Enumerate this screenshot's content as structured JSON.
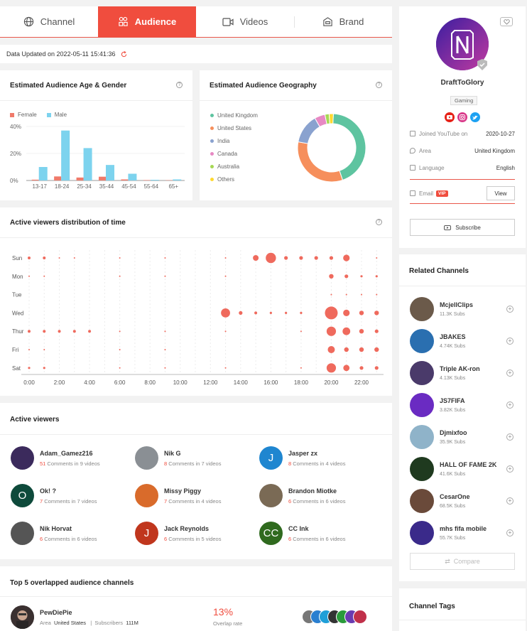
{
  "tabs": [
    {
      "label": "Channel",
      "icon": "globe-icon",
      "active": false
    },
    {
      "label": "Audience",
      "icon": "audience-icon",
      "active": true
    },
    {
      "label": "Videos",
      "icon": "video-icon",
      "active": false
    },
    {
      "label": "Brand",
      "icon": "brand-icon",
      "active": false
    }
  ],
  "updated": {
    "label": "Data Updated on 2022-05-11 15:41:36"
  },
  "age_gender": {
    "title": "Estimated Audience Age & Gender",
    "legend": [
      "Female",
      "Male"
    ],
    "colors": {
      "female": "#f07a6a",
      "male": "#7dd3ee"
    },
    "chart_data": {
      "type": "bar",
      "categories": [
        "13-17",
        "18-24",
        "25-34",
        "35-44",
        "45-54",
        "55-64",
        "65+"
      ],
      "series": [
        {
          "name": "Female",
          "values": [
            0.6,
            3,
            2.2,
            2.8,
            0.8,
            0.3,
            0.2
          ]
        },
        {
          "name": "Male",
          "values": [
            10,
            37,
            24,
            11.5,
            5,
            0.5,
            0.8
          ]
        }
      ],
      "yticks": [
        "40%",
        "20%",
        "0%"
      ],
      "ylim": [
        0,
        40
      ]
    }
  },
  "geography": {
    "title": "Estimated Audience Geography",
    "chart_data": {
      "type": "pie",
      "labels": [
        "United Kingdom",
        "United States",
        "India",
        "Canada",
        "Australia",
        "Others"
      ],
      "values": [
        44,
        33,
        14,
        5,
        2,
        2
      ],
      "colors": [
        "#5ec4a0",
        "#f68f5c",
        "#8aa2cf",
        "#e789c3",
        "#a6d854",
        "#ffd92f"
      ]
    }
  },
  "active_time": {
    "title": "Active viewers distribution of time",
    "chart_data": {
      "type": "scatter",
      "days": [
        "Sun",
        "Mon",
        "Tue",
        "Wed",
        "Thur",
        "Fri",
        "Sat"
      ],
      "x_ticks": [
        "0:00",
        "2:00",
        "4:00",
        "6:00",
        "8:00",
        "10:00",
        "12:00",
        "14:00",
        "16:00",
        "18:00",
        "20:00",
        "22:00"
      ],
      "points": [
        [
          0,
          0,
          1
        ],
        [
          0,
          1,
          1
        ],
        [
          0,
          2,
          0.5
        ],
        [
          0,
          3,
          0.5
        ],
        [
          0,
          6,
          0.5
        ],
        [
          0,
          9,
          0.5
        ],
        [
          0,
          13,
          0.5
        ],
        [
          0,
          15,
          2
        ],
        [
          0,
          16,
          3.6
        ],
        [
          0,
          17,
          1.3
        ],
        [
          0,
          18,
          1.3
        ],
        [
          0,
          19,
          1.3
        ],
        [
          0,
          20,
          1.3
        ],
        [
          0,
          21,
          2.3
        ],
        [
          0,
          23,
          0.5
        ],
        [
          1,
          0,
          0.5
        ],
        [
          1,
          1,
          0.5
        ],
        [
          1,
          6,
          0.5
        ],
        [
          1,
          9,
          0.5
        ],
        [
          1,
          13,
          0.5
        ],
        [
          1,
          20,
          1.6
        ],
        [
          1,
          21,
          1.3
        ],
        [
          1,
          22,
          0.8
        ],
        [
          1,
          23,
          0.8
        ],
        [
          2,
          20,
          0.5
        ],
        [
          2,
          21,
          0.5
        ],
        [
          2,
          22,
          0.5
        ],
        [
          2,
          23,
          0.5
        ],
        [
          3,
          13,
          3.2
        ],
        [
          3,
          14,
          1.3
        ],
        [
          3,
          15,
          1
        ],
        [
          3,
          16,
          0.8
        ],
        [
          3,
          17,
          0.8
        ],
        [
          3,
          18,
          0.8
        ],
        [
          3,
          20,
          4.5
        ],
        [
          3,
          21,
          2.3
        ],
        [
          3,
          22,
          1.6
        ],
        [
          3,
          23,
          1.6
        ],
        [
          4,
          0,
          1
        ],
        [
          4,
          1,
          1
        ],
        [
          4,
          2,
          1
        ],
        [
          4,
          3,
          1
        ],
        [
          4,
          4,
          1
        ],
        [
          4,
          6,
          0.5
        ],
        [
          4,
          9,
          0.5
        ],
        [
          4,
          13,
          0.5
        ],
        [
          4,
          18,
          0.5
        ],
        [
          4,
          20,
          3.3
        ],
        [
          4,
          21,
          2.7
        ],
        [
          4,
          22,
          1.6
        ],
        [
          4,
          23,
          1.3
        ],
        [
          5,
          0,
          0.5
        ],
        [
          5,
          1,
          0.5
        ],
        [
          5,
          6,
          0.5
        ],
        [
          5,
          9,
          0.5
        ],
        [
          5,
          20,
          2.5
        ],
        [
          5,
          21,
          1.6
        ],
        [
          5,
          22,
          1.6
        ],
        [
          5,
          23,
          1.6
        ],
        [
          6,
          0,
          0.8
        ],
        [
          6,
          1,
          0.8
        ],
        [
          6,
          6,
          0.5
        ],
        [
          6,
          9,
          0.5
        ],
        [
          6,
          13,
          0.5
        ],
        [
          6,
          18,
          0.5
        ],
        [
          6,
          20,
          3.3
        ],
        [
          6,
          21,
          2.2
        ],
        [
          6,
          22,
          1.3
        ],
        [
          6,
          23,
          1.3
        ]
      ],
      "color": "#ef6a5d"
    }
  },
  "active_viewers": {
    "title": "Active viewers",
    "items": [
      {
        "name": "Adam_Gamez216",
        "count": "51",
        "rest": " Comments in 9 videos",
        "letter": "",
        "bg": "#3b2a5c"
      },
      {
        "name": "Nik G",
        "count": "8",
        "rest": " Comments in 7 videos",
        "letter": "",
        "bg": "#8a8f94"
      },
      {
        "name": "Jasper zx",
        "count": "8",
        "rest": " Comments in 4 videos",
        "letter": "J",
        "bg": "#1f86d0"
      },
      {
        "name": "Ok! ?",
        "count": "7",
        "rest": " Comments in 7 videos",
        "letter": "O",
        "bg": "#0e4a3b"
      },
      {
        "name": "Missy Piggy",
        "count": "7",
        "rest": " Comments in 4 videos",
        "letter": "",
        "bg": "#d96b2b"
      },
      {
        "name": "Brandon Miotke",
        "count": "6",
        "rest": " Comments in 6 videos",
        "letter": "",
        "bg": "#7a6a55"
      },
      {
        "name": "Nik Horvat",
        "count": "6",
        "rest": " Comments in 6 videos",
        "letter": "",
        "bg": "#555"
      },
      {
        "name": "Jack Reynolds",
        "count": "6",
        "rest": " Comments in 5 videos",
        "letter": "J",
        "bg": "#c0361d"
      },
      {
        "name": "CC Ink",
        "count": "6",
        "rest": " Comments in 6 videos",
        "letter": "CC",
        "bg": "#2f6a1e"
      }
    ]
  },
  "overlap": {
    "title": "Top 5 overlapped audience channels",
    "channel": "PewDiePie",
    "area_label": "Area",
    "area": "United States",
    "subs_label": "Subscribers",
    "subs": "111M",
    "rate": "13%",
    "rate_label": "Overlap rate"
  },
  "profile": {
    "name": "DraftToGlory",
    "tag": "Gaming",
    "joined_label": "Joined YouTube on",
    "joined": "2020-10-27",
    "area_label": "Area",
    "area": "United Kingdom",
    "language_label": "Language",
    "language": "English",
    "email_label": "Email",
    "vip": "VIP",
    "view_label": "View",
    "subscribe_label": "Subscribe"
  },
  "related": {
    "title": "Related Channels",
    "items": [
      {
        "name": "McjellClips",
        "subs": "11.3K Subs",
        "bg": "#6b5a4a"
      },
      {
        "name": "JBAKES",
        "subs": "4.74K Subs",
        "bg": "#2a6fb0"
      },
      {
        "name": "Triple AK-ron",
        "subs": "4.13K Subs",
        "bg": "#4a3a6a"
      },
      {
        "name": "JS7FIFA",
        "subs": "3.82K Subs",
        "bg": "#6a2bc2"
      },
      {
        "name": "Djmixfoo",
        "subs": "35.9K Subs",
        "bg": "#8fb3c9"
      },
      {
        "name": "HALL OF FAME 2K",
        "subs": "41.6K Subs",
        "bg": "#1f3a1f"
      },
      {
        "name": "CesarOne",
        "subs": "68.5K Subs",
        "bg": "#6a4a3a"
      },
      {
        "name": "mhs fifa mobile",
        "subs": "55.7K Subs",
        "bg": "#3a2a8a"
      }
    ],
    "compare_label": "Compare"
  },
  "tags": {
    "title": "Channel Tags"
  }
}
